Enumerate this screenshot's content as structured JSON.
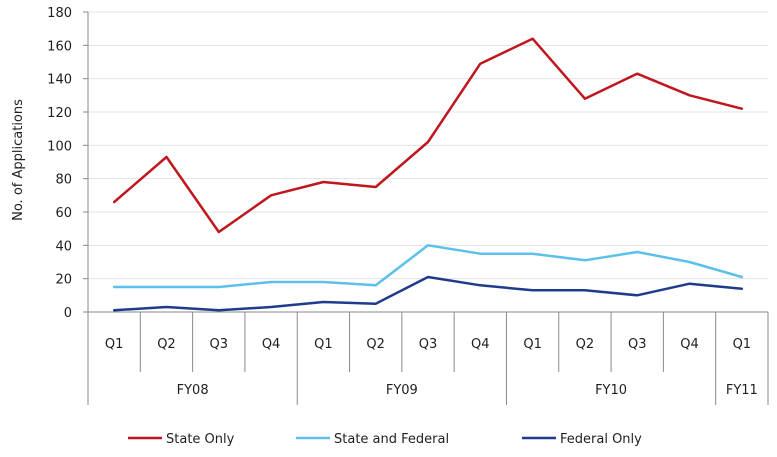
{
  "chart_data": {
    "type": "line",
    "title": "",
    "xlabel": "",
    "ylabel": "No. of Applications",
    "ylim": [
      0,
      180
    ],
    "yticks": [
      0,
      20,
      40,
      60,
      80,
      100,
      120,
      140,
      160,
      180
    ],
    "grid": true,
    "legend_position": "bottom",
    "categories": [
      "Q1",
      "Q2",
      "Q3",
      "Q4",
      "Q1",
      "Q2",
      "Q3",
      "Q4",
      "Q1",
      "Q2",
      "Q3",
      "Q4",
      "Q1"
    ],
    "groups": [
      {
        "label": "FY08",
        "count": 4
      },
      {
        "label": "FY09",
        "count": 4
      },
      {
        "label": "FY10",
        "count": 4
      },
      {
        "label": "FY11",
        "count": 1
      }
    ],
    "series": [
      {
        "name": "State Only",
        "color": "#c0171e",
        "values": [
          66,
          93,
          48,
          70,
          78,
          75,
          102,
          149,
          164,
          128,
          143,
          130,
          122
        ]
      },
      {
        "name": "State and Federal",
        "color": "#5bc0ea",
        "values": [
          15,
          15,
          15,
          18,
          18,
          16,
          40,
          35,
          35,
          31,
          36,
          30,
          21
        ]
      },
      {
        "name": "Federal Only",
        "color": "#1f3c8c",
        "values": [
          1,
          3,
          1,
          3,
          6,
          5,
          21,
          16,
          13,
          13,
          10,
          17,
          14
        ]
      }
    ]
  }
}
